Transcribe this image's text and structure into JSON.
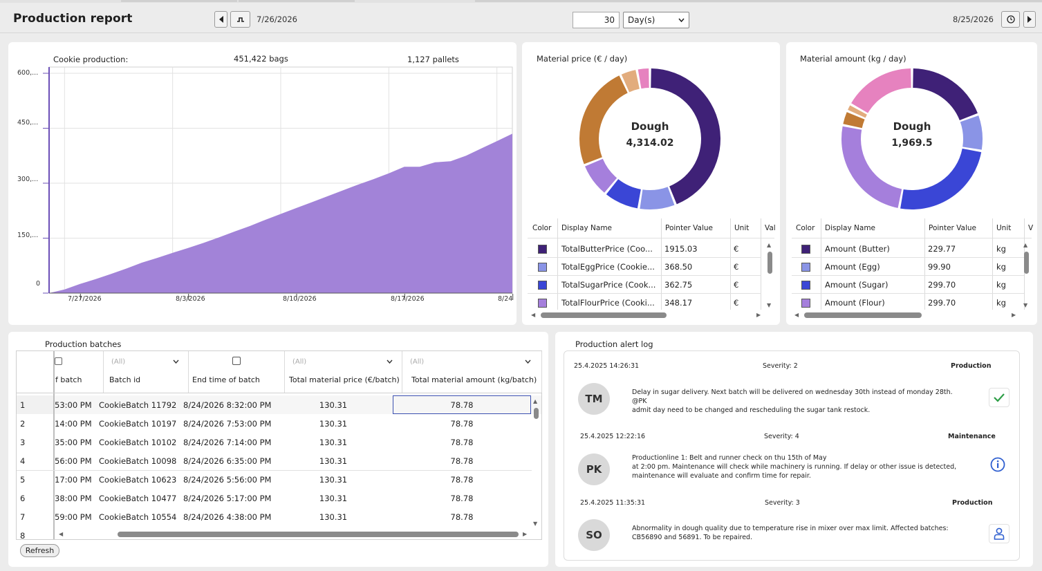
{
  "header": {
    "title": "Production report",
    "start_date": "7/26/2026",
    "period_value": "30",
    "period_unit": "Day(s)",
    "end_date": "8/25/2026"
  },
  "cookie_chart": {
    "title": "Cookie production:",
    "bags": "451,422 bags",
    "pallets": "1,127 pallets",
    "y_ticks": [
      "600,...",
      "450,...",
      "300,...",
      "150,...",
      "0"
    ],
    "x_ticks": [
      "7/27/2026",
      "8/3/2026",
      "8/10/2026",
      "8/17/2026",
      "8/24"
    ]
  },
  "chart_data": {
    "type": "area",
    "x": [
      "7/26/2026",
      "7/27/2026",
      "7/28/2026",
      "7/29/2026",
      "7/30/2026",
      "7/31/2026",
      "8/1/2026",
      "8/2/2026",
      "8/3/2026",
      "8/4/2026",
      "8/5/2026",
      "8/6/2026",
      "8/7/2026",
      "8/8/2026",
      "8/9/2026",
      "8/10/2026",
      "8/11/2026",
      "8/12/2026",
      "8/13/2026",
      "8/14/2026",
      "8/15/2026",
      "8/16/2026",
      "8/17/2026",
      "8/18/2026",
      "8/19/2026",
      "8/20/2026",
      "8/21/2026",
      "8/22/2026",
      "8/23/2026",
      "8/24/2026",
      "8/25/2026"
    ],
    "values": [
      0,
      10000,
      25000,
      38000,
      52000,
      67000,
      83000,
      96000,
      110000,
      123000,
      137000,
      152000,
      168000,
      183000,
      200000,
      216000,
      232000,
      248000,
      264000,
      280000,
      296000,
      311000,
      327000,
      345000,
      345000,
      357000,
      360000,
      375000,
      395000,
      415000,
      435000
    ],
    "ylim": [
      0,
      600000
    ],
    "grid": true,
    "color": "#a283d8"
  },
  "price_donut": {
    "title": "Material price (€ / day)",
    "center_label": "Dough",
    "center_value": "4,314.02",
    "slices": [
      {
        "value": 1915.03,
        "color": "#3f2177"
      },
      {
        "value": 368.5,
        "color": "#8a94e6"
      },
      {
        "value": 362.75,
        "color": "#3a46d6"
      },
      {
        "value": 348.17,
        "color": "#a57fdc"
      },
      {
        "value": 1050.0,
        "color": "#c07a34"
      },
      {
        "value": 170.0,
        "color": "#e2ac7d"
      },
      {
        "value": 130.0,
        "color": "#e682bf"
      }
    ],
    "headers": [
      "Color",
      "Display Name",
      "Pointer Value",
      "Unit",
      "Val"
    ],
    "rows": [
      {
        "color": "#3f2177",
        "name": "TotalButterPrice (Coo...",
        "value": "1915.03",
        "unit": "€"
      },
      {
        "color": "#8a94e6",
        "name": "TotalEggPrice (Cookie...",
        "value": "368.50",
        "unit": "€"
      },
      {
        "color": "#3a46d6",
        "name": "TotalSugarPrice (Cook...",
        "value": "362.75",
        "unit": "€"
      },
      {
        "color": "#a57fdc",
        "name": "TotalFlourPrice (Cooki...",
        "value": "348.17",
        "unit": "€"
      }
    ]
  },
  "amount_donut": {
    "title": "Material amount (kg / day)",
    "center_label": "Dough",
    "center_value": "1,969.5",
    "slices": [
      {
        "value": 229.77,
        "color": "#3f2177"
      },
      {
        "value": 99.9,
        "color": "#8a94e6"
      },
      {
        "value": 299.7,
        "color": "#3a46d6"
      },
      {
        "value": 299.7,
        "color": "#a57fdc"
      },
      {
        "value": 40.0,
        "color": "#c07a34"
      },
      {
        "value": 20.0,
        "color": "#e2ac7d"
      },
      {
        "value": 200.0,
        "color": "#e682bf"
      }
    ],
    "headers": [
      "Color",
      "Display Name",
      "Pointer Value",
      "Unit",
      "V"
    ],
    "rows": [
      {
        "color": "#3f2177",
        "name": "Amount (Butter)",
        "value": "229.77",
        "unit": "kg"
      },
      {
        "color": "#8a94e6",
        "name": "Amount (Egg)",
        "value": "99.90",
        "unit": "kg"
      },
      {
        "color": "#3a46d6",
        "name": "Amount (Sugar)",
        "value": "299.70",
        "unit": "kg"
      },
      {
        "color": "#a57fdc",
        "name": "Amount (Flour)",
        "value": "299.70",
        "unit": "kg"
      }
    ]
  },
  "batches": {
    "title": "Production batches",
    "filter_all": "(All)",
    "headers": [
      "f batch",
      "Batch id",
      "End time of batch",
      "Total material price (€/batch)",
      "Total material amount (kg/batch)"
    ],
    "rows": [
      {
        "n": "1",
        "start": "53:00 PM",
        "id": "CookieBatch 11792",
        "end": "8/24/2026 8:32:00 PM",
        "price": "130.31",
        "amount": "78.78"
      },
      {
        "n": "2",
        "start": "14:00 PM",
        "id": "CookieBatch 10197",
        "end": "8/24/2026 7:53:00 PM",
        "price": "130.31",
        "amount": "78.78"
      },
      {
        "n": "3",
        "start": "35:00 PM",
        "id": "CookieBatch 10102",
        "end": "8/24/2026 7:14:00 PM",
        "price": "130.31",
        "amount": "78.78"
      },
      {
        "n": "4",
        "start": "56:00 PM",
        "id": "CookieBatch 10098",
        "end": "8/24/2026 6:35:00 PM",
        "price": "130.31",
        "amount": "78.78"
      },
      {
        "n": "5",
        "start": "17:00 PM",
        "id": "CookieBatch 10623",
        "end": "8/24/2026 5:56:00 PM",
        "price": "130.31",
        "amount": "78.78"
      },
      {
        "n": "6",
        "start": "38:00 PM",
        "id": "CookieBatch 10477",
        "end": "8/24/2026 5:17:00 PM",
        "price": "130.31",
        "amount": "78.78"
      },
      {
        "n": "7",
        "start": "59:00 PM",
        "id": "CookieBatch 10554",
        "end": "8/24/2026 4:38:00 PM",
        "price": "130.31",
        "amount": "78.78"
      },
      {
        "n": "8",
        "start": "",
        "id": "",
        "end": "",
        "price": "",
        "amount": ""
      }
    ],
    "refresh_label": "Refresh"
  },
  "alerts": {
    "title": "Production alert log",
    "items": [
      {
        "time": "25.4.2025 14:26:31",
        "severity": "Severity: 2",
        "category": "Production",
        "initials": "TM",
        "line1": "Delay in sugar delivery. Next batch will be delivered on wednesday 30th instead of monday 28th.  @PK",
        "line2": "admit day  need to be changed and rescheduling the sugar tank restock.",
        "line3": "",
        "icon": "check-icon"
      },
      {
        "time": "25.4.2025 12:22:16",
        "severity": "Severity: 4",
        "category": "Maintenance",
        "initials": "PK",
        "line1": "Productionline 1: Belt and runner check on thu 15th of May",
        "line2": "at 2:00 pm. Maintenance will check while machinery is  running. If delay or other issue is detected,",
        "line3": "maintenance will  evaluate and confirm time for repair.",
        "icon": "info-icon"
      },
      {
        "time": "25.4.2025 11:35:31",
        "severity": "Severity: 3",
        "category": "Production",
        "initials": "SO",
        "line1": "Abnormality in dough quality due to temperature rise in mixer over max limit. Affected batches:",
        "line2": "CB56890 and 56891. To be repaired.",
        "line3": "",
        "icon": "person-icon"
      }
    ]
  }
}
